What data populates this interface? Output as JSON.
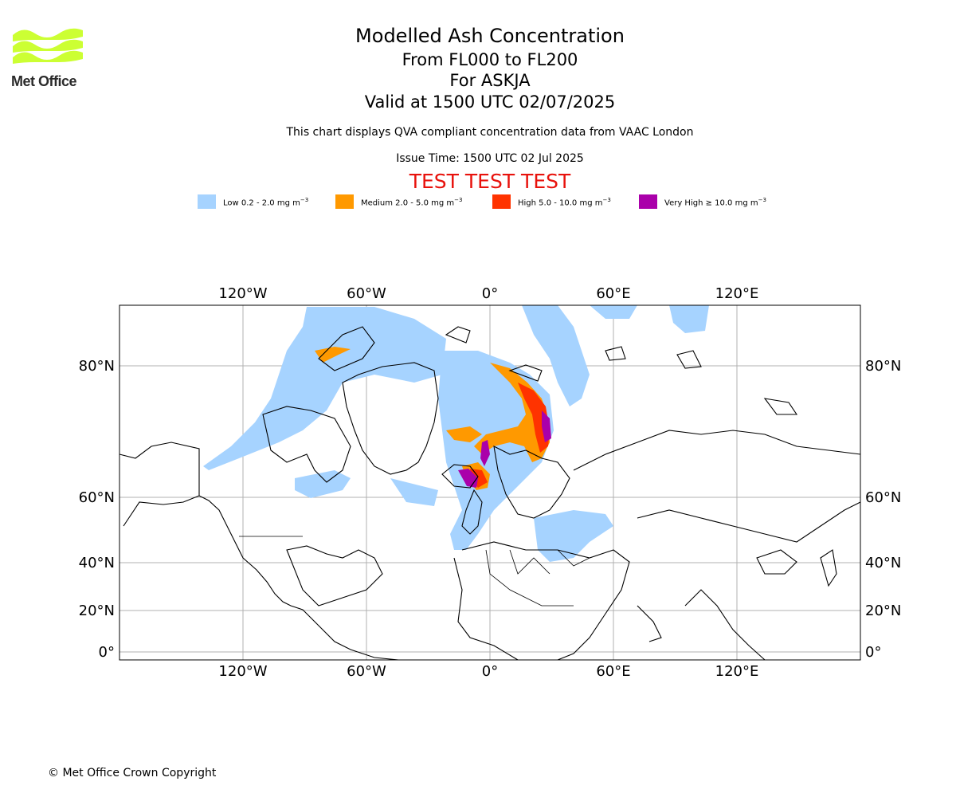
{
  "header": {
    "title": "Modelled Ash Concentration",
    "levels": "From FL000 to FL200",
    "volcano": "For ASKJA",
    "valid": "Valid at 1500 UTC 02/07/2025",
    "description": "This chart displays QVA compliant concentration data from VAAC London",
    "issue_time": "Issue Time: 1500 UTC 02 Jul 2025",
    "test_banner": "TEST TEST TEST"
  },
  "logo": {
    "text": "Met Office",
    "color": "#ccff33"
  },
  "legend": [
    {
      "label": "Low 0.2 - 2.0 mg m",
      "unit_exp": "−3",
      "color": "#a6d3ff"
    },
    {
      "label": "Medium 2.0 - 5.0 mg m",
      "unit_exp": "−3",
      "color": "#ff9900"
    },
    {
      "label": "High 5.0 - 10.0 mg m",
      "unit_exp": "−3",
      "color": "#ff3300"
    },
    {
      "label": "Very High ≥ 10.0 mg m",
      "unit_exp": "−3",
      "color": "#aa00aa"
    }
  ],
  "map": {
    "lon_ticks": [
      "120°W",
      "60°W",
      "0°",
      "60°E",
      "120°E"
    ],
    "lat_ticks": [
      "80°N",
      "60°N",
      "40°N",
      "20°N",
      "0°"
    ]
  },
  "footer": {
    "copyright": "© Met Office Crown Copyright"
  }
}
